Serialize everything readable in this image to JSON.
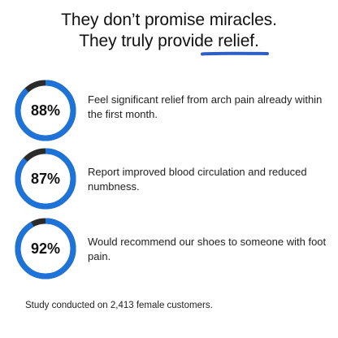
{
  "headline": {
    "line1": "They don’t promise miracles.",
    "line2": "They truly provide relief."
  },
  "colors": {
    "ring_fill": "#1e73d8",
    "ring_track": "#2b2b2b",
    "underline": "#2f5fc4"
  },
  "stats": [
    {
      "percent": 88,
      "label": "88%",
      "text": "Feel significant relief from arch pain already within the first month."
    },
    {
      "percent": 87,
      "label": "87%",
      "text": "Report improved blood circulation and reduced numbness."
    },
    {
      "percent": 92,
      "label": "92%",
      "text": "Would recommend our shoes to someone with foot pain."
    }
  ],
  "footnote": "Study conducted on 2,413 female customers."
}
